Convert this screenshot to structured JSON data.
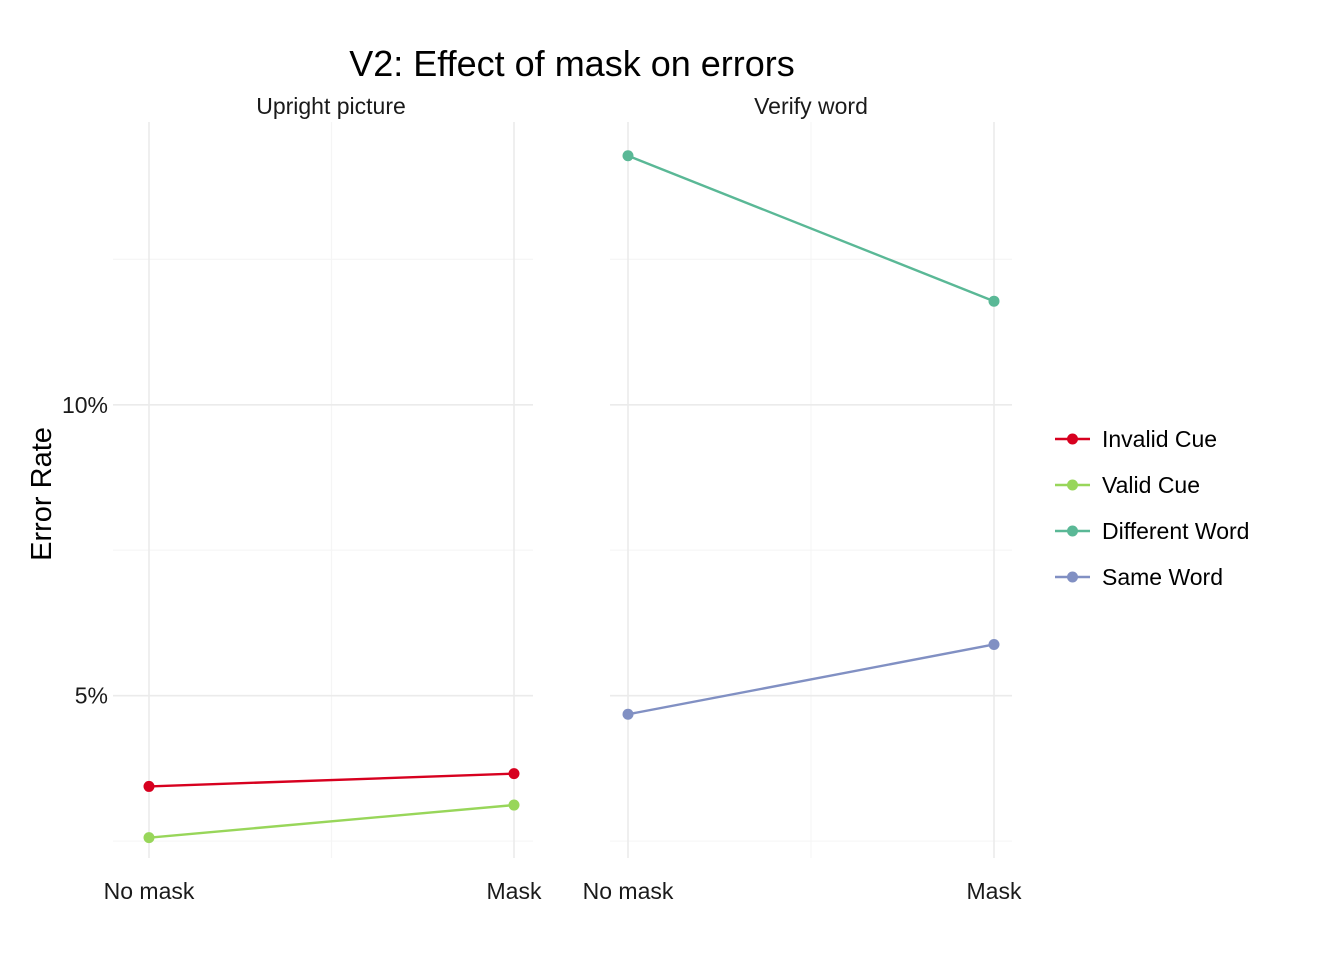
{
  "chart_data": {
    "type": "line",
    "title": "V2: Effect of mask on errors",
    "ylabel": "Error Rate",
    "xlabel": "",
    "x_categories": [
      "No mask",
      "Mask"
    ],
    "y_ticks": [
      {
        "value": 0.05,
        "label": "5%"
      },
      {
        "value": 0.1,
        "label": "10%"
      }
    ],
    "ylim": [
      0.0221,
      0.1486
    ],
    "grid": true,
    "legend_position": "right",
    "panels": [
      {
        "strip_label": "Upright picture",
        "series": [
          {
            "name": "Invalid Cue",
            "color": "#d7001f",
            "values": [
              0.0344,
              0.0366
            ]
          },
          {
            "name": "Valid Cue",
            "color": "#98d65a",
            "values": [
              0.0256,
              0.0312
            ]
          }
        ]
      },
      {
        "strip_label": "Verify word",
        "series": [
          {
            "name": "Different Word",
            "color": "#5ab896",
            "values": [
              0.1428,
              0.1178
            ]
          },
          {
            "name": "Same Word",
            "color": "#8190c3",
            "values": [
              0.0468,
              0.0588
            ]
          }
        ]
      }
    ],
    "legend": [
      {
        "name": "Invalid Cue",
        "color": "#d7001f"
      },
      {
        "name": "Valid Cue",
        "color": "#98d65a"
      },
      {
        "name": "Different Word",
        "color": "#5ab896"
      },
      {
        "name": "Same Word",
        "color": "#8190c3"
      }
    ]
  }
}
